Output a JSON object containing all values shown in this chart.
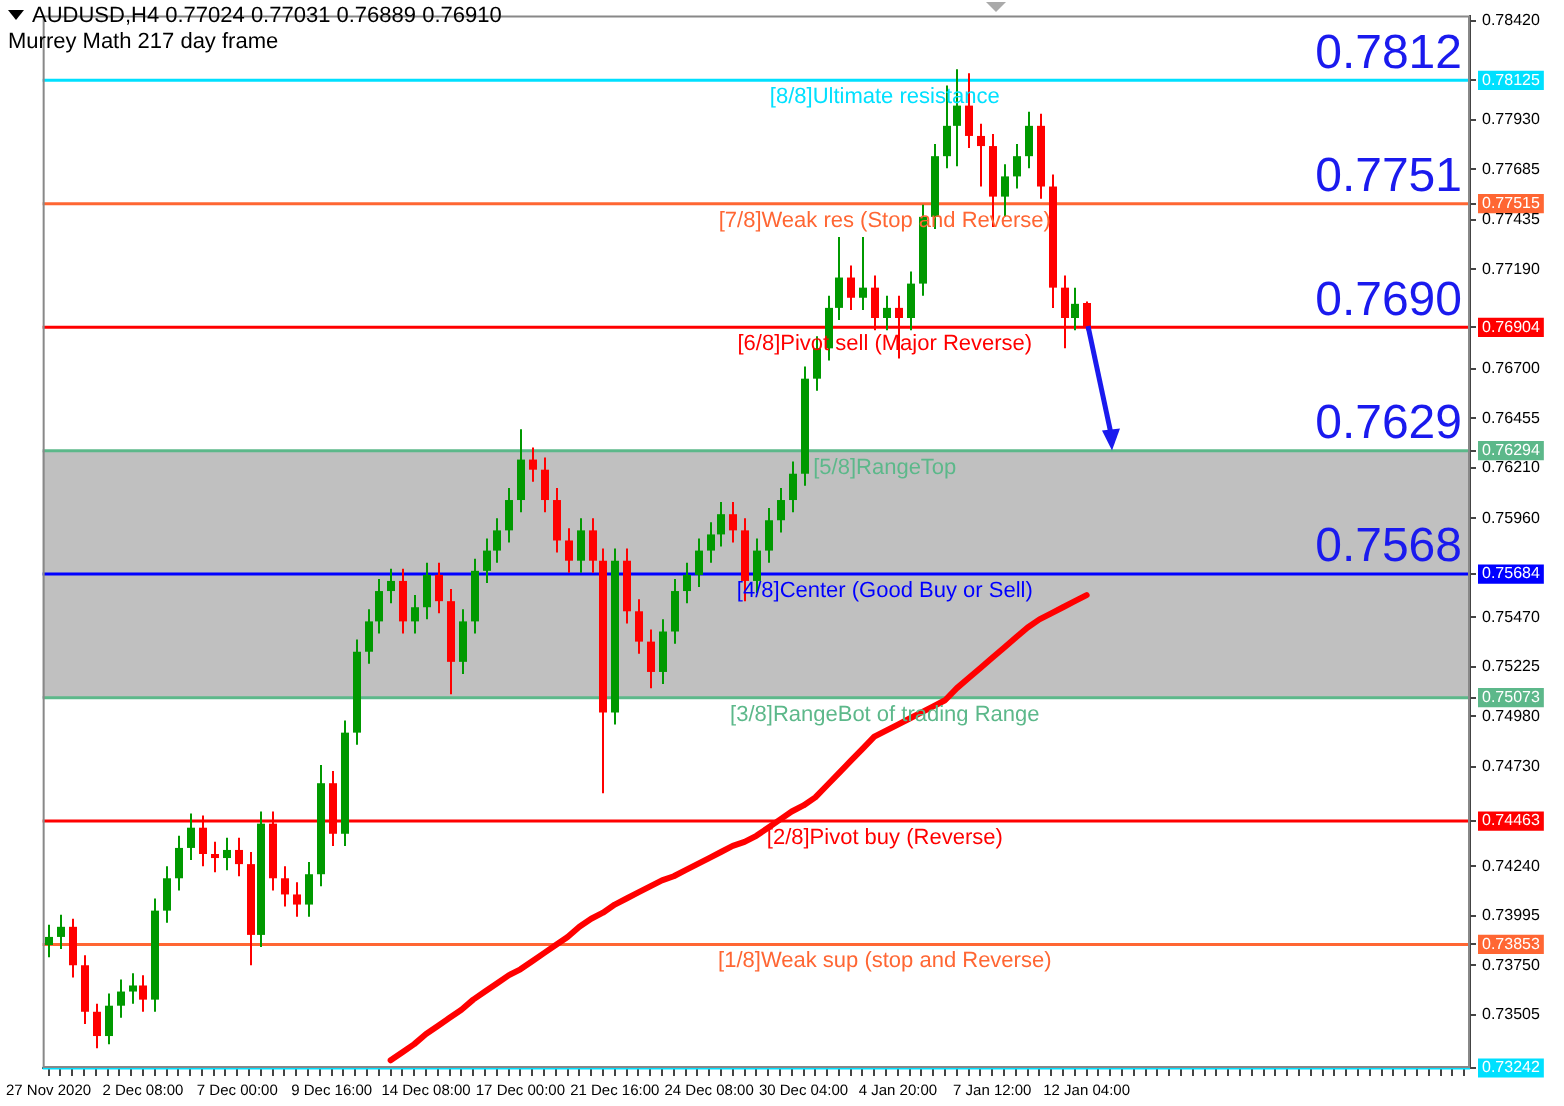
{
  "chart_data": {
    "type": "candlestick",
    "title": "AUDUSD,H4  0.77024 0.77031 0.76889 0.76910",
    "subtitle": "Murrey Math 217 day frame",
    "categories": [
      "27 Nov 2020",
      null,
      null,
      null,
      null,
      null,
      null,
      null,
      "2 Dec 08:00",
      null,
      null,
      null,
      null,
      null,
      null,
      null,
      "7 Dec 00:00",
      null,
      null,
      null,
      null,
      null,
      null,
      null,
      "9 Dec 16:00",
      null,
      null,
      null,
      null,
      null,
      null,
      null,
      "14 Dec 08:00",
      null,
      null,
      null,
      null,
      null,
      null,
      null,
      "17 Dec 00:00",
      null,
      null,
      null,
      null,
      null,
      null,
      null,
      "21 Dec 16:00",
      null,
      null,
      null,
      null,
      null,
      null,
      null,
      "24 Dec 08:00",
      null,
      null,
      null,
      null,
      null,
      null,
      null,
      "30 Dec 04:00",
      null,
      null,
      null,
      null,
      null,
      null,
      null,
      "4 Jan 20:00",
      null,
      null,
      null,
      null,
      null,
      null,
      null,
      "7 Jan 12:00",
      null,
      null,
      null,
      null,
      null,
      null,
      null,
      "12 Jan 04:00",
      null,
      null,
      null,
      null,
      null,
      null,
      null,
      null,
      null,
      null,
      null,
      null,
      null,
      null,
      null,
      null,
      null,
      null,
      null,
      null,
      null,
      null,
      null,
      null,
      null,
      null,
      null,
      null,
      null,
      null,
      null,
      null
    ],
    "ohlc": [
      [
        0.7385,
        0.7395,
        0.7379,
        0.7389
      ],
      [
        0.7389,
        0.74,
        0.7383,
        0.7394
      ],
      [
        0.7394,
        0.7398,
        0.7369,
        0.7375
      ],
      [
        0.7375,
        0.738,
        0.7346,
        0.7352
      ],
      [
        0.7352,
        0.7356,
        0.7334,
        0.734
      ],
      [
        0.734,
        0.7361,
        0.7336,
        0.7355
      ],
      [
        0.7355,
        0.7368,
        0.7349,
        0.7362
      ],
      [
        0.7362,
        0.7371,
        0.7356,
        0.7365
      ],
      [
        0.7365,
        0.737,
        0.7352,
        0.7358
      ],
      [
        0.7358,
        0.7408,
        0.7352,
        0.7402
      ],
      [
        0.7402,
        0.7424,
        0.7396,
        0.7418
      ],
      [
        0.7418,
        0.7439,
        0.7412,
        0.7433
      ],
      [
        0.7433,
        0.745,
        0.7427,
        0.7443
      ],
      [
        0.7443,
        0.7449,
        0.7424,
        0.743
      ],
      [
        0.743,
        0.7436,
        0.7421,
        0.7428
      ],
      [
        0.7428,
        0.7438,
        0.7422,
        0.7432
      ],
      [
        0.7432,
        0.7438,
        0.7419,
        0.7425
      ],
      [
        0.7425,
        0.7431,
        0.7375,
        0.739
      ],
      [
        0.739,
        0.7451,
        0.7384,
        0.7445
      ],
      [
        0.7445,
        0.7451,
        0.7412,
        0.7418
      ],
      [
        0.7418,
        0.7424,
        0.7404,
        0.741
      ],
      [
        0.741,
        0.7416,
        0.7399,
        0.7405
      ],
      [
        0.7405,
        0.7426,
        0.7399,
        0.742
      ],
      [
        0.742,
        0.7474,
        0.7414,
        0.7465
      ],
      [
        0.7465,
        0.7471,
        0.7434,
        0.744
      ],
      [
        0.744,
        0.7496,
        0.7434,
        0.749
      ],
      [
        0.749,
        0.7536,
        0.7484,
        0.753
      ],
      [
        0.753,
        0.7551,
        0.7524,
        0.7545
      ],
      [
        0.7545,
        0.7566,
        0.7539,
        0.756
      ],
      [
        0.756,
        0.7571,
        0.7554,
        0.7565
      ],
      [
        0.7565,
        0.7571,
        0.7539,
        0.7545
      ],
      [
        0.7545,
        0.7558,
        0.7539,
        0.7552
      ],
      [
        0.7552,
        0.7574,
        0.7546,
        0.7568
      ],
      [
        0.7568,
        0.7574,
        0.7549,
        0.7555
      ],
      [
        0.7555,
        0.7561,
        0.7509,
        0.7525
      ],
      [
        0.7525,
        0.7551,
        0.7519,
        0.7545
      ],
      [
        0.7545,
        0.7576,
        0.7539,
        0.757
      ],
      [
        0.757,
        0.7586,
        0.7564,
        0.758
      ],
      [
        0.758,
        0.7596,
        0.7574,
        0.759
      ],
      [
        0.759,
        0.7611,
        0.7584,
        0.7605
      ],
      [
        0.7605,
        0.764,
        0.7599,
        0.7625
      ],
      [
        0.7625,
        0.7631,
        0.7614,
        0.762
      ],
      [
        0.762,
        0.7626,
        0.7599,
        0.7605
      ],
      [
        0.7605,
        0.7611,
        0.7579,
        0.7585
      ],
      [
        0.7585,
        0.7591,
        0.7569,
        0.7575
      ],
      [
        0.7575,
        0.7596,
        0.7569,
        0.759
      ],
      [
        0.759,
        0.7596,
        0.7569,
        0.7575
      ],
      [
        0.7575,
        0.7581,
        0.746,
        0.75
      ],
      [
        0.75,
        0.7581,
        0.7494,
        0.7575
      ],
      [
        0.7575,
        0.7581,
        0.7544,
        0.755
      ],
      [
        0.755,
        0.7556,
        0.7529,
        0.7535
      ],
      [
        0.7535,
        0.7541,
        0.7512,
        0.752
      ],
      [
        0.752,
        0.7546,
        0.7514,
        0.754
      ],
      [
        0.754,
        0.7566,
        0.7534,
        0.756
      ],
      [
        0.756,
        0.7574,
        0.7554,
        0.7568
      ],
      [
        0.7568,
        0.7586,
        0.7562,
        0.758
      ],
      [
        0.758,
        0.7594,
        0.7574,
        0.7588
      ],
      [
        0.7588,
        0.7604,
        0.7582,
        0.7598
      ],
      [
        0.7598,
        0.7604,
        0.7584,
        0.759
      ],
      [
        0.759,
        0.7596,
        0.7555,
        0.7565
      ],
      [
        0.7565,
        0.7586,
        0.7559,
        0.758
      ],
      [
        0.758,
        0.7601,
        0.7574,
        0.7595
      ],
      [
        0.7595,
        0.7611,
        0.7589,
        0.7605
      ],
      [
        0.7605,
        0.7624,
        0.7599,
        0.7618
      ],
      [
        0.7618,
        0.7671,
        0.7612,
        0.7665
      ],
      [
        0.7665,
        0.7686,
        0.7659,
        0.768
      ],
      [
        0.768,
        0.7706,
        0.7674,
        0.77
      ],
      [
        0.77,
        0.7735,
        0.7694,
        0.7715
      ],
      [
        0.7715,
        0.7721,
        0.7699,
        0.7705
      ],
      [
        0.7705,
        0.7735,
        0.7699,
        0.771
      ],
      [
        0.771,
        0.7716,
        0.7689,
        0.7695
      ],
      [
        0.7695,
        0.7706,
        0.7689,
        0.77
      ],
      [
        0.77,
        0.7706,
        0.7675,
        0.7695
      ],
      [
        0.7695,
        0.7718,
        0.7689,
        0.7712
      ],
      [
        0.7712,
        0.7751,
        0.7706,
        0.7745
      ],
      [
        0.7745,
        0.7781,
        0.7739,
        0.7775
      ],
      [
        0.7775,
        0.781,
        0.7769,
        0.779
      ],
      [
        0.779,
        0.7818,
        0.777,
        0.78
      ],
      [
        0.78,
        0.7816,
        0.7779,
        0.7785
      ],
      [
        0.7785,
        0.7791,
        0.776,
        0.778
      ],
      [
        0.778,
        0.7786,
        0.774,
        0.7755
      ],
      [
        0.7755,
        0.7771,
        0.7745,
        0.7765
      ],
      [
        0.7765,
        0.7781,
        0.7759,
        0.7775
      ],
      [
        0.7775,
        0.7797,
        0.7769,
        0.779
      ],
      [
        0.779,
        0.7796,
        0.7754,
        0.776
      ],
      [
        0.776,
        0.7766,
        0.77,
        0.771
      ],
      [
        0.771,
        0.7716,
        0.768,
        0.7695
      ],
      [
        0.7695,
        0.771,
        0.7689,
        0.7702
      ],
      [
        0.77024,
        0.77031,
        0.76889,
        0.7691
      ],
      null,
      null,
      null,
      null,
      null,
      null,
      null,
      null,
      null,
      null,
      null,
      null,
      null,
      null,
      null,
      null,
      null,
      null,
      null,
      null,
      null,
      null,
      null,
      null,
      null,
      null,
      null,
      null,
      null,
      null,
      null,
      null
    ],
    "series": [
      {
        "type": "line",
        "color": "#ff0000",
        "values": [
          null,
          null,
          null,
          null,
          null,
          null,
          null,
          null,
          null,
          null,
          null,
          null,
          null,
          null,
          null,
          null,
          null,
          null,
          null,
          null,
          null,
          null,
          null,
          null,
          null,
          null,
          null,
          null,
          null,
          0.7328,
          0.7332,
          0.7336,
          0.7341,
          0.7345,
          0.7349,
          0.7353,
          0.7358,
          0.7362,
          0.7366,
          0.737,
          0.7373,
          0.7377,
          0.7381,
          0.7385,
          0.7389,
          0.7394,
          0.7398,
          0.7401,
          0.7405,
          0.7408,
          0.7411,
          0.7414,
          0.7417,
          0.7419,
          0.7422,
          0.7425,
          0.7428,
          0.7431,
          0.7434,
          0.7436,
          0.7439,
          0.7443,
          0.7447,
          0.7451,
          0.7454,
          0.7458,
          0.7464,
          0.747,
          0.7476,
          0.7482,
          0.7488,
          0.7491,
          0.7494,
          0.7497,
          0.75,
          0.7503,
          0.7506,
          0.7512,
          0.7517,
          0.7522,
          0.7527,
          0.7532,
          0.7537,
          0.7542,
          0.7546,
          0.7549,
          0.7552,
          0.7555,
          0.7558,
          null,
          null,
          null,
          null,
          null,
          null,
          null,
          null,
          null,
          null,
          null,
          null,
          null,
          null,
          null,
          null,
          null,
          null,
          null,
          null,
          null,
          null,
          null,
          null,
          null,
          null,
          null,
          null,
          null,
          null,
          null,
          null
        ]
      }
    ],
    "ylim": [
      0.73242,
      0.78445
    ],
    "yticks": [
      {
        "value": 0.7842,
        "label": "0.78420"
      },
      0.78125,
      {
        "value": 0.7793,
        "label": "0.77930"
      },
      {
        "value": 0.77685,
        "label": "0.77685"
      },
      0.77515,
      {
        "value": 0.77435,
        "label": "0.77435"
      },
      {
        "value": 0.7719,
        "label": "0.77190"
      },
      0.76904,
      {
        "value": 0.767,
        "label": "0.76700"
      },
      {
        "value": 0.76455,
        "label": "0.76455"
      },
      0.76294,
      {
        "value": 0.7621,
        "label": "0.76210"
      },
      {
        "value": 0.7596,
        "label": "0.75960"
      },
      0.75684,
      {
        "value": 0.7547,
        "label": "0.75470"
      },
      {
        "value": 0.75225,
        "label": "0.75225"
      },
      0.75073,
      {
        "value": 0.7498,
        "label": "0.74980"
      },
      {
        "value": 0.7473,
        "label": "0.74730"
      },
      0.74463,
      {
        "value": 0.7424,
        "label": "0.74240"
      },
      {
        "value": 0.73995,
        "label": "0.73995"
      },
      0.73853,
      {
        "value": 0.7375,
        "label": "0.73750"
      },
      {
        "value": 0.73505,
        "label": "0.73505"
      },
      0.73242
    ],
    "ref_lines": [
      {
        "axis": "y",
        "value": 0.78125,
        "label": "[8/8]Ultimate resistance",
        "color": "#00e0ff"
      },
      {
        "axis": "y",
        "value": 0.77515,
        "label": "[7/8]Weak res (Stop and Reverse)",
        "color": "#ff6633"
      },
      {
        "axis": "y",
        "value": 0.76904,
        "label": "[6/8]Pivot sell (Major Reverse)",
        "color": "#ff0000"
      },
      {
        "axis": "y",
        "value": 0.76294,
        "label": "[5/8]RangeTop",
        "color": "#5cb88a"
      },
      {
        "axis": "y",
        "value": 0.75684,
        "label": "[4/8]Center (Good Buy or Sell)",
        "color": "#0000ff"
      },
      {
        "axis": "y",
        "value": 0.75073,
        "label": "[3/8]RangeBot of trading Range",
        "color": "#5cb88a"
      },
      {
        "axis": "y",
        "value": 0.74463,
        "label": "[2/8]Pivot buy (Reverse)",
        "color": "#ff0000"
      },
      {
        "axis": "y",
        "value": 0.73853,
        "label": "[1/8]Weak sup (stop and Reverse)",
        "color": "#ff6633"
      },
      {
        "axis": "y",
        "value": 0.73242,
        "color": "#00e0ff"
      }
    ],
    "bands": [
      {
        "axis": "y",
        "from": 0.75073,
        "to": 0.76294,
        "color": "#c0c0c0"
      }
    ],
    "annotations": [
      {
        "text": "0.7812",
        "y": 0.78125
      },
      {
        "text": "0.7751",
        "y": 0.77515
      },
      {
        "text": "0.7690",
        "y": 0.76904
      },
      {
        "text": "0.7629",
        "y": 0.76294
      },
      {
        "text": "0.7568",
        "y": 0.75684
      }
    ],
    "legend": false
  }
}
